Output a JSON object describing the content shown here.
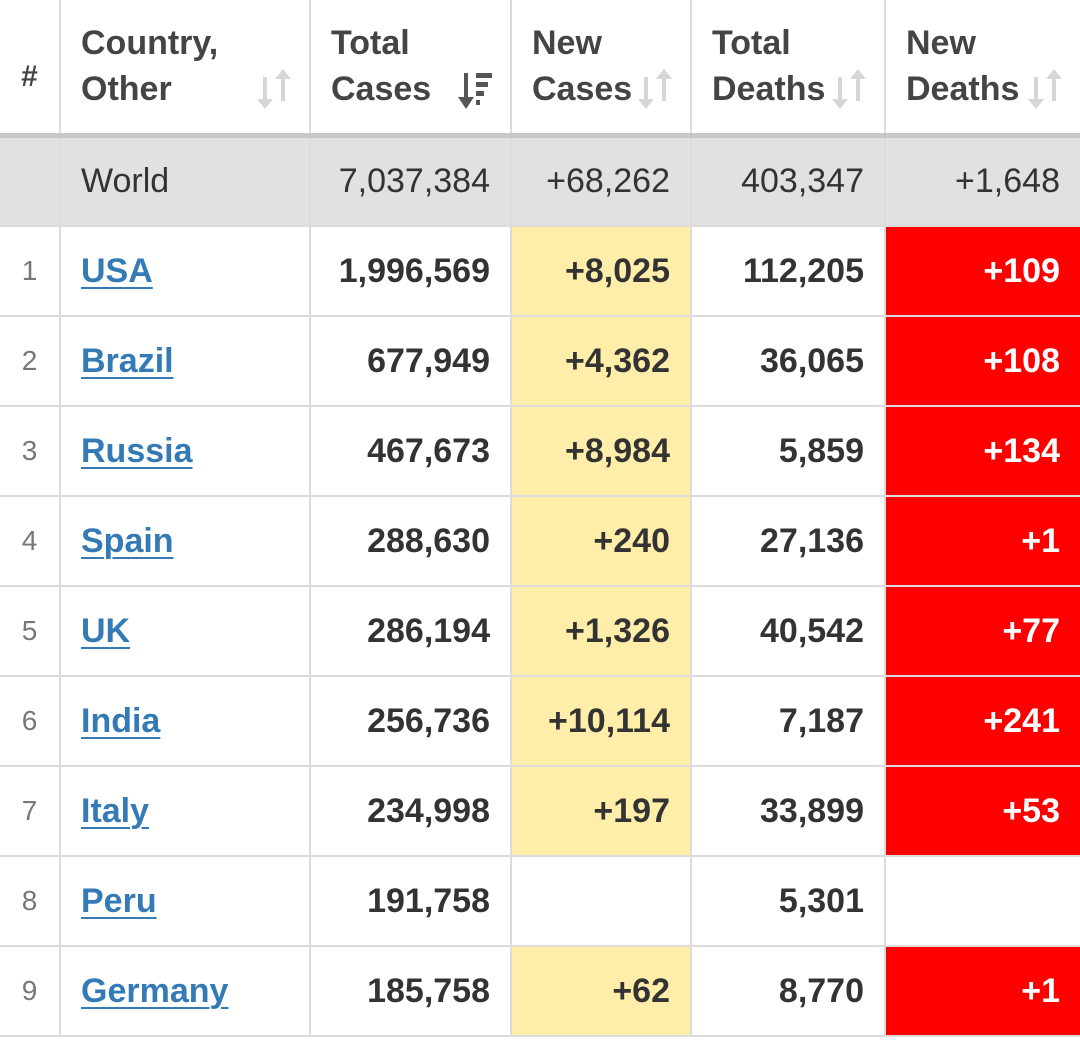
{
  "headers": [
    {
      "key": "rank",
      "label": "#"
    },
    {
      "key": "country",
      "label": "Country, Other",
      "sort_icon": "sort-both-icon"
    },
    {
      "key": "total_cases",
      "label": "Total Cases",
      "sort_icon": "sort-descending-icon"
    },
    {
      "key": "new_cases",
      "label": "New Cases",
      "sort_icon": "sort-both-icon"
    },
    {
      "key": "total_deaths",
      "label": "Total Deaths",
      "sort_icon": "sort-both-icon"
    },
    {
      "key": "new_deaths",
      "label": "New Deaths",
      "sort_icon": "sort-both-icon"
    }
  ],
  "world": {
    "country": "World",
    "total_cases": "7,037,384",
    "new_cases": "+68,262",
    "total_deaths": "403,347",
    "new_deaths": "+1,648"
  },
  "rows": [
    {
      "rank": "1",
      "country": "USA",
      "total_cases": "1,996,569",
      "new_cases": "+8,025",
      "total_deaths": "112,205",
      "new_deaths": "+109"
    },
    {
      "rank": "2",
      "country": "Brazil",
      "total_cases": "677,949",
      "new_cases": "+4,362",
      "total_deaths": "36,065",
      "new_deaths": "+108"
    },
    {
      "rank": "3",
      "country": "Russia",
      "total_cases": "467,673",
      "new_cases": "+8,984",
      "total_deaths": "5,859",
      "new_deaths": "+134"
    },
    {
      "rank": "4",
      "country": "Spain",
      "total_cases": "288,630",
      "new_cases": "+240",
      "total_deaths": "27,136",
      "new_deaths": "+1"
    },
    {
      "rank": "5",
      "country": "UK",
      "total_cases": "286,194",
      "new_cases": "+1,326",
      "total_deaths": "40,542",
      "new_deaths": "+77"
    },
    {
      "rank": "6",
      "country": "India",
      "total_cases": "256,736",
      "new_cases": "+10,114",
      "total_deaths": "7,187",
      "new_deaths": "+241"
    },
    {
      "rank": "7",
      "country": "Italy",
      "total_cases": "234,998",
      "new_cases": "+197",
      "total_deaths": "33,899",
      "new_deaths": "+53"
    },
    {
      "rank": "8",
      "country": "Peru",
      "total_cases": "191,758",
      "new_cases": "",
      "total_deaths": "5,301",
      "new_deaths": ""
    },
    {
      "rank": "9",
      "country": "Germany",
      "total_cases": "185,758",
      "new_cases": "+62",
      "total_deaths": "8,770",
      "new_deaths": "+1"
    }
  ],
  "colors": {
    "header_text": "#444444",
    "world_row_bg": "#e1e1e1",
    "new_cases_bg": "#ffeeaa",
    "new_deaths_bg": "#ff0000",
    "link": "#337ab7",
    "grid": "#dcdcdc"
  }
}
